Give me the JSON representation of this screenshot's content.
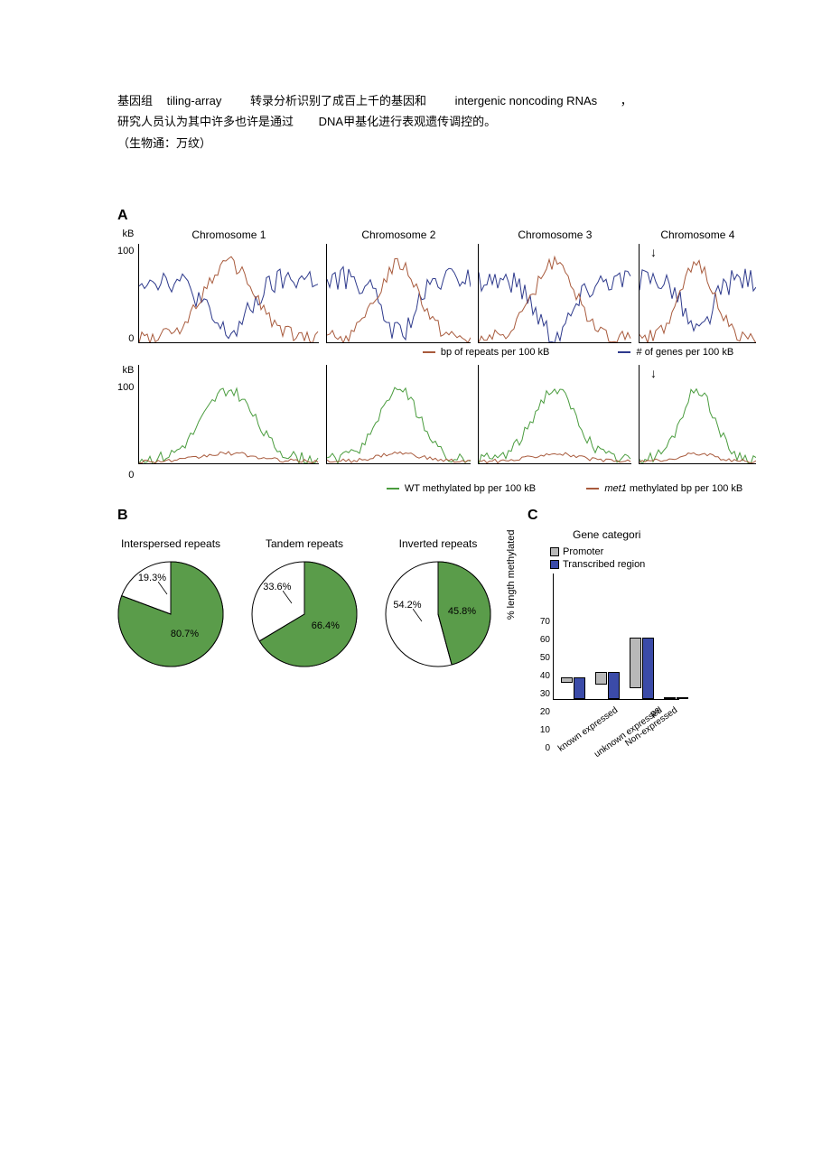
{
  "text": {
    "line1_a": "基因组",
    "line1_b": "tiling-array",
    "line1_c": "转录分析识别了成百上千的基因和",
    "line1_d": "intergenic noncoding RNAs",
    "line1_e": "，",
    "line2_a": "研究人员认为其中许多也许是通过",
    "line2_b": "DNA甲基化进行表观遗传调控的。",
    "line3": "（生物通：万纹）"
  },
  "panelA": {
    "label": "A",
    "y_unit": "kB",
    "y_max": "100",
    "y_min": "0",
    "chromosomes": [
      "Chromosome 1",
      "Chromosome 2",
      "Chromosome 3",
      "Chromosome 4"
    ],
    "widths": [
      200,
      160,
      170,
      130
    ],
    "top_colors": {
      "repeats": "#a85a3c",
      "genes": "#2e3a8c"
    },
    "bot_colors": {
      "wt": "#4a9c3e",
      "met1": "#a85a3c"
    },
    "legend_top_left": "bp of repeats per 100 kB",
    "legend_top_right": "# of genes per 100 kB",
    "legend_bot_left": "WT methylated bp per 100 kB",
    "legend_bot_right_a": "met1",
    "legend_bot_right_b": " methylated bp per 100 kB",
    "arrow_chrom": 3
  },
  "panelB": {
    "label": "B",
    "pies": [
      {
        "title": "Interspersed repeats",
        "green_pct": 80.7,
        "white_pct": 19.3,
        "green_label": "80.7%",
        "white_label": "19.3%"
      },
      {
        "title": "Tandem repeats",
        "green_pct": 66.4,
        "white_pct": 33.6,
        "green_label": "66.4%",
        "white_label": "33.6%"
      },
      {
        "title": "Inverted repeats",
        "green_pct": 45.8,
        "white_pct": 54.2,
        "green_label": "45.8%",
        "white_label": "54.2%"
      }
    ],
    "green_color": "#5a9c4a",
    "white_color": "#ffffff",
    "border_color": "#000000"
  },
  "panelC": {
    "label": "C",
    "title": "Gene categori",
    "legend": [
      {
        "label": "Promoter",
        "color": "#b8b8b8"
      },
      {
        "label": "Transcribed region",
        "color": "#3b4ba8"
      }
    ],
    "y_label": "% length methylated",
    "y_ticks": [
      0,
      10,
      20,
      30,
      40,
      50,
      60,
      70
    ],
    "y_max": 70,
    "categories": [
      "known expressed",
      "unknown expressed",
      "Non-expressed",
      "ps"
    ],
    "bars": [
      {
        "promoter": 3,
        "transcribed": 12
      },
      {
        "promoter": 7,
        "transcribed": 15
      },
      {
        "promoter": 28,
        "transcribed": 34
      },
      {
        "promoter": 0,
        "transcribed": 0
      }
    ]
  }
}
